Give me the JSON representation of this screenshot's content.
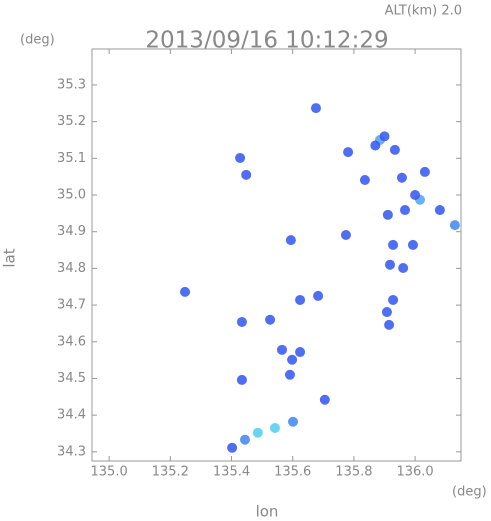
{
  "chart_data": {
    "type": "scatter",
    "subtitle": "ALT(km) 2.0",
    "title": "2013/09/16 10:12:29",
    "y_unit": "(deg)",
    "x_unit": "(deg)",
    "ylabel": "lat",
    "xlabel": "lon",
    "xlim": [
      134.944,
      136.15
    ],
    "ylim": [
      34.275,
      35.398
    ],
    "xticks": [
      {
        "value": 135.0,
        "label": "135.0"
      },
      135.2,
      135.4,
      135.6,
      135.8,
      {
        "value": 136.0,
        "label": "136.0"
      }
    ],
    "yticks": [
      34.3,
      34.4,
      34.5,
      34.6,
      34.7,
      34.8,
      34.9,
      {
        "value": 35.0,
        "label": "35.0"
      },
      35.1,
      35.2,
      35.3
    ],
    "x": [
      135.676,
      135.885,
      135.87,
      135.9,
      135.934,
      135.957,
      136.032,
      136.016,
      136.0,
      135.967,
      135.911,
      136.081,
      136.13,
      135.781,
      135.836,
      135.428,
      135.448,
      135.928,
      135.993,
      135.918,
      135.961,
      135.928,
      135.908,
      135.915,
      135.683,
      135.624,
      135.526,
      135.434,
      135.565,
      135.624,
      135.591,
      135.598,
      135.434,
      135.705,
      135.601,
      135.542,
      135.486,
      135.444,
      135.402,
      135.248,
      135.774,
      135.594
    ],
    "y": [
      35.237,
      35.15,
      35.135,
      35.16,
      35.123,
      35.047,
      35.063,
      34.987,
      35.0,
      34.959,
      34.946,
      34.959,
      34.918,
      35.117,
      35.041,
      35.101,
      35.055,
      34.864,
      34.864,
      34.81,
      34.801,
      34.714,
      34.681,
      34.646,
      34.725,
      34.714,
      34.66,
      34.654,
      34.578,
      34.572,
      34.51,
      34.551,
      34.496,
      34.442,
      34.382,
      34.365,
      34.352,
      34.333,
      34.311,
      34.736,
      34.891,
      34.877
    ],
    "colors": [
      "#3c5ef0",
      "#5aa8f2",
      "#3c5ef0",
      "#3c5ef0",
      "#3c5ef0",
      "#3c5ef0",
      "#3c5ef0",
      "#5aa8f2",
      "#3c5ef0",
      "#3c5ef0",
      "#3c5ef0",
      "#3c5ef0",
      "#4a8cf0",
      "#3c5ef0",
      "#3c5ef0",
      "#3c5ef0",
      "#3c5ef0",
      "#3c5ef0",
      "#3c5ef0",
      "#3c5ef0",
      "#3c5ef0",
      "#3c5ef0",
      "#3c5ef0",
      "#3c5ef0",
      "#3c5ef0",
      "#3c5ef0",
      "#3c5ef0",
      "#3c5ef0",
      "#3c5ef0",
      "#3c5ef0",
      "#3c5ef0",
      "#3c5ef0",
      "#3c5ef0",
      "#3c5ef0",
      "#4a8cf0",
      "#5ad0f0",
      "#5ad0f0",
      "#4a8cf0",
      "#3c5ef0",
      "#3c5ef0",
      "#3c5ef0",
      "#3c5ef0"
    ]
  }
}
